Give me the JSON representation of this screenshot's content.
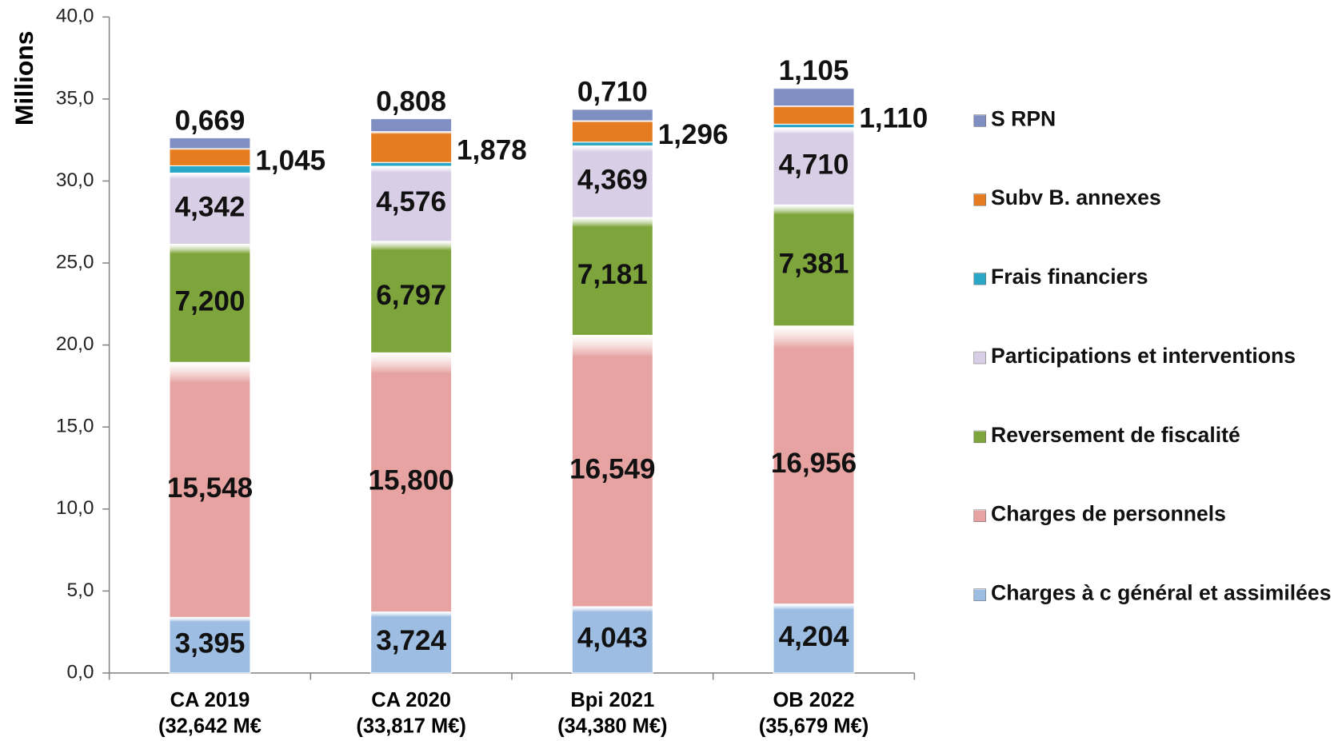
{
  "chart_data": {
    "type": "stacked_bar",
    "y_label": "Millions",
    "categories": [
      [
        "CA 2019",
        "(32,642 M€"
      ],
      [
        "CA 2020",
        "(33,817 M€)"
      ],
      [
        "Bpi 2021",
        "(34,380 M€)"
      ],
      [
        "OB 2022",
        "(35,679 M€)"
      ]
    ],
    "series": [
      {
        "name": "Charges à c général et assimilées",
        "color": "#9dbde3",
        "values": [
          3.395,
          3.724,
          4.043,
          4.204
        ],
        "value_labels": [
          "3,395",
          "3,724",
          "4,043",
          "4,204"
        ]
      },
      {
        "name": "Charges de personnels",
        "color": "#e6a3a1",
        "values": [
          15.548,
          15.8,
          16.549,
          16.956
        ],
        "value_labels": [
          "15,548",
          "15,800",
          "16,549",
          "16,956"
        ]
      },
      {
        "name": "Reversement de fiscalité",
        "color": "#7ea53b",
        "values": [
          7.2,
          6.797,
          7.181,
          7.381
        ],
        "value_labels": [
          "7,200",
          "6,797",
          "7,181",
          "7,381"
        ]
      },
      {
        "name": "Participations et interventions",
        "color": "#d8cfe6",
        "values": [
          4.342,
          4.576,
          4.369,
          4.71
        ],
        "value_labels": [
          "4,342",
          "4,576",
          "4,369",
          "4,710"
        ]
      },
      {
        "name": "Frais financiers",
        "color": "#2aa7c6",
        "values": [
          0.443,
          0.234,
          0.232,
          0.213
        ]
      },
      {
        "name": "Subv B. annexes",
        "color": "#e67c20",
        "values": [
          1.045,
          1.878,
          1.296,
          1.11
        ],
        "value_labels": [
          "1,045",
          "1,878",
          "1,296",
          "1,110"
        ]
      },
      {
        "name": "S RPN",
        "color": "#7f8fc2",
        "values": [
          0.669,
          0.808,
          0.71,
          1.105
        ],
        "value_labels": [
          "0,669",
          "0,808",
          "0,710",
          "1,105"
        ]
      }
    ],
    "ylim": [
      0,
      40
    ],
    "yticks": [
      {
        "value": 0,
        "label": "0,0"
      },
      {
        "value": 5,
        "label": "5,0"
      },
      {
        "value": 10,
        "label": "10,0"
      },
      {
        "value": 15,
        "label": "15,0"
      },
      {
        "value": 20,
        "label": "20,0"
      },
      {
        "value": 25,
        "label": "25,0"
      },
      {
        "value": 30,
        "label": "30,0"
      },
      {
        "value": 35,
        "label": "35,0"
      },
      {
        "value": 40,
        "label": "40,0"
      }
    ],
    "legend": "right"
  }
}
